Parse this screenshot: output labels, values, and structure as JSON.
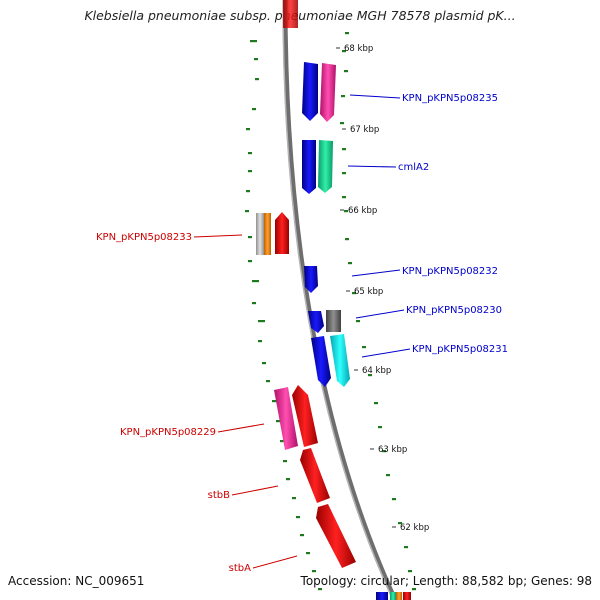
{
  "title": "Klebsiella pneumoniae subsp. pneumoniae MGH 78578 plasmid pK...",
  "footer": {
    "accession": "Accession: NC_009651",
    "topology": "Topology: circular; Length: 88,582 bp; Genes: 98"
  },
  "ticks": [
    {
      "label": "68 kbp"
    },
    {
      "label": "67 kbp"
    },
    {
      "label": "66 kbp"
    },
    {
      "label": "65 kbp"
    },
    {
      "label": "64 kbp"
    },
    {
      "label": "63 kbp"
    },
    {
      "label": "62 kbp"
    }
  ],
  "gene_labels": [
    {
      "name": "KPN_pKPN5p08235",
      "strand": "forward",
      "color": "#0000cc"
    },
    {
      "name": "cmlA2",
      "strand": "forward",
      "color": "#0000cc"
    },
    {
      "name": "KPN_pKPN5p08233",
      "strand": "reverse",
      "color": "#cc0000"
    },
    {
      "name": "KPN_pKPN5p08232",
      "strand": "forward",
      "color": "#0000cc"
    },
    {
      "name": "KPN_pKPN5p08230",
      "strand": "forward",
      "color": "#0000cc"
    },
    {
      "name": "KPN_pKPN5p08231",
      "strand": "forward",
      "color": "#0000cc"
    },
    {
      "name": "KPN_pKPN5p08229",
      "strand": "reverse",
      "color": "#cc0000"
    },
    {
      "name": "stbB",
      "strand": "reverse",
      "color": "#cc0000"
    },
    {
      "name": "stbA",
      "strand": "reverse",
      "color": "#cc0000"
    }
  ],
  "colors": {
    "backbone": "#8a8a8a",
    "gc_skew": "#1f7a1f",
    "forward_cds": "#0000ee",
    "reverse_cds": "#ee0000"
  }
}
